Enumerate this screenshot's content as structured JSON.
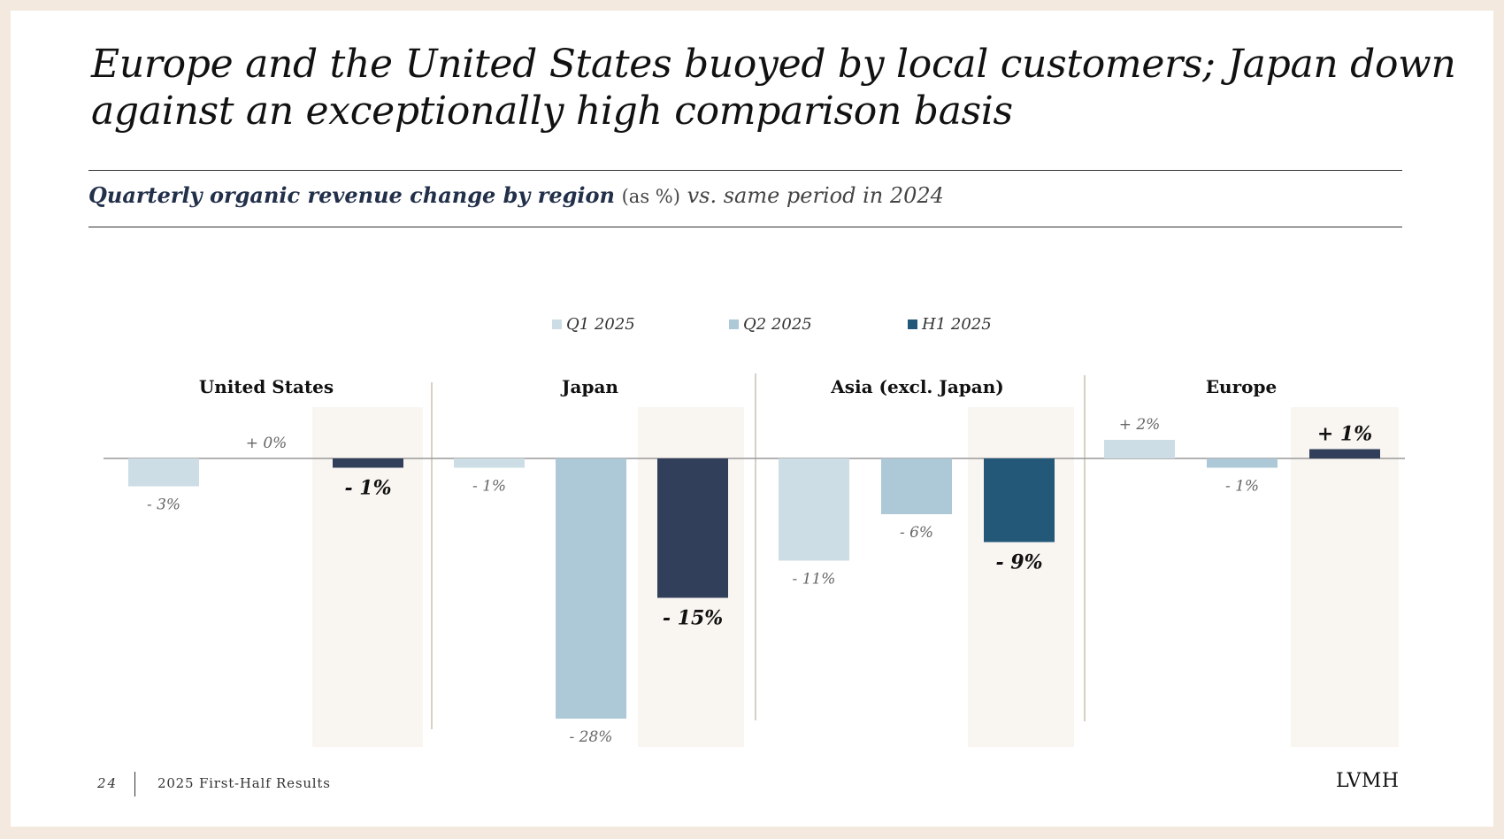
{
  "title": "Europe and the United States buoyed by local customers; Japan down against an exceptionally high comparison basis",
  "subtitle": {
    "bold": "Quarterly organic revenue change by region",
    "unit": "(as %)",
    "rest": "vs. same period in 2024"
  },
  "footer": {
    "page": "24",
    "doc": "2025 First-Half Results",
    "brand": "LVMH"
  },
  "colors": {
    "q1": "#cddde5",
    "q2": "#adc8d6",
    "h1_dark": "#313f5a",
    "h1_blue": "#235878",
    "highlight": "#f9f6f2",
    "divider": "#c9c2b0"
  },
  "chart_data": {
    "type": "bar",
    "categories": [
      "United States",
      "Japan",
      "Asia (excl. Japan)",
      "Europe"
    ],
    "series": [
      {
        "name": "Q1 2025",
        "values": [
          -3,
          -1,
          -11,
          2
        ],
        "labels": [
          "- 3%",
          "- 1%",
          "- 11%",
          "+ 2%"
        ]
      },
      {
        "name": "Q2 2025",
        "values": [
          0,
          -28,
          -6,
          -1
        ],
        "labels": [
          "+ 0%",
          "- 28%",
          "- 6%",
          "- 1%"
        ]
      },
      {
        "name": "H1 2025",
        "values": [
          -1,
          -15,
          -9,
          1
        ],
        "labels": [
          "- 1%",
          "- 15%",
          "- 9%",
          "+ 1%"
        ]
      }
    ],
    "title": "",
    "xlabel": "",
    "ylabel": "",
    "legend_position": "top-center"
  }
}
